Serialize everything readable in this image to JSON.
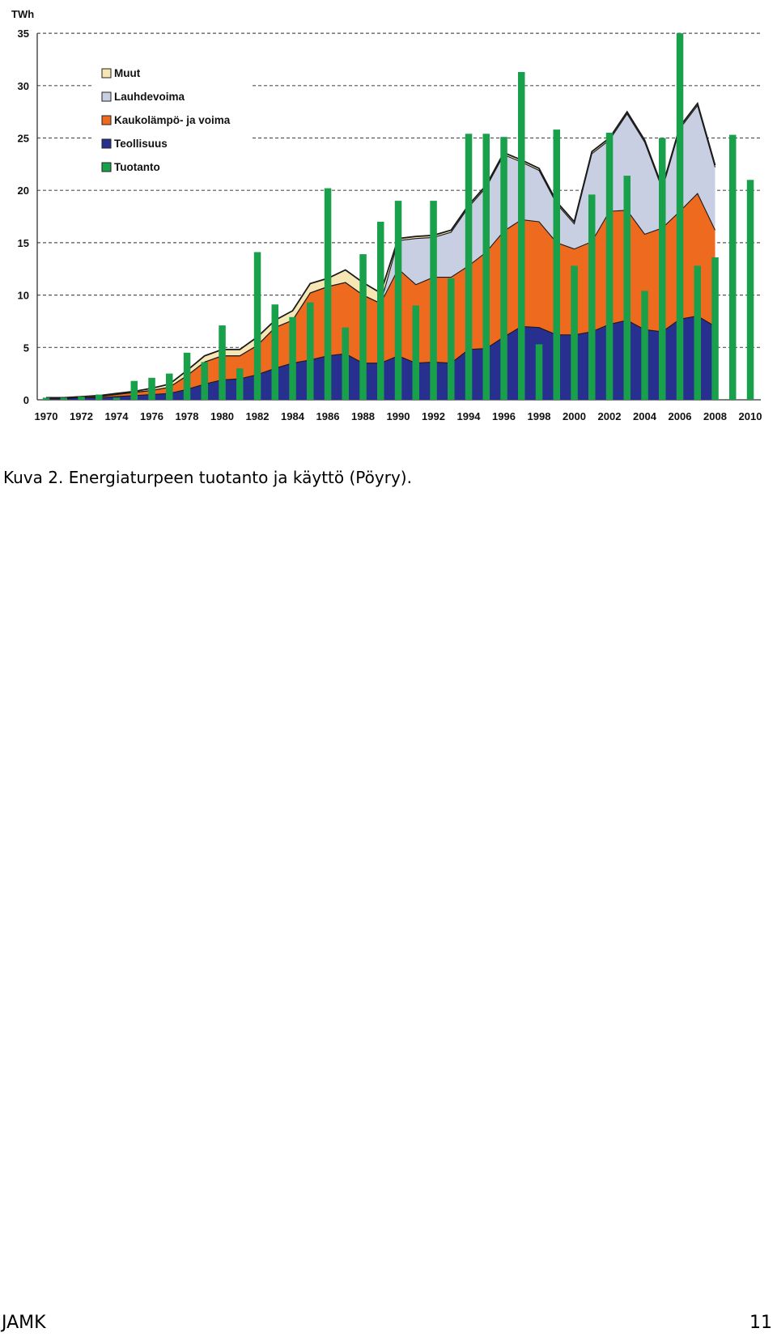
{
  "caption": {
    "label": "Kuva 2.",
    "text": "Energiaturpeen tuotanto ja käyttö (Pöyry)."
  },
  "footer": {
    "left": "JAMK",
    "right": "11"
  },
  "colors": {
    "muut": "#f5e6b4",
    "lauhdevoima": "#c9cfe2",
    "kaukolampo": "#ee6a1e",
    "teollisuus": "#27308f",
    "tuotanto": "#19a04a",
    "grid": "#555555",
    "outline": "#1a1a1a"
  },
  "chart_data": {
    "type": "area",
    "unit_label": "TWh",
    "ylim": [
      0,
      35
    ],
    "yticks": [
      0,
      5,
      10,
      15,
      20,
      25,
      30,
      35
    ],
    "xticks": [
      "1970",
      "1972",
      "1974",
      "1976",
      "1978",
      "1980",
      "1982",
      "1984",
      "1986",
      "1988",
      "1990",
      "1992",
      "1994",
      "1996",
      "1998",
      "2000",
      "2002",
      "2004",
      "2006",
      "2008",
      "2010"
    ],
    "grid": "horizontal dashed",
    "legend_placement": "top-left",
    "legend": [
      "Muut",
      "Lauhdevoima",
      "Kaukolämpö- ja voima",
      "Teollisuus",
      "Tuotanto"
    ],
    "x": [
      1970,
      1971,
      1972,
      1973,
      1974,
      1975,
      1976,
      1977,
      1978,
      1979,
      1980,
      1981,
      1982,
      1983,
      1984,
      1985,
      1986,
      1987,
      1988,
      1989,
      1990,
      1991,
      1992,
      1993,
      1994,
      1995,
      1996,
      1997,
      1998,
      1999,
      2000,
      2001,
      2002,
      2003,
      2004,
      2005,
      2006,
      2007,
      2008,
      2009,
      2010
    ],
    "stacked_series": [
      {
        "name": "Teollisuus",
        "values": [
          0.1,
          0.1,
          0.2,
          0.2,
          0.3,
          0.4,
          0.5,
          0.6,
          1.0,
          1.5,
          1.9,
          2.0,
          2.4,
          3.0,
          3.5,
          3.8,
          4.2,
          4.4,
          3.5,
          3.5,
          4.2,
          3.5,
          3.6,
          3.5,
          4.8,
          4.9,
          6.0,
          7.0,
          6.9,
          6.2,
          6.2,
          6.5,
          7.2,
          7.6,
          6.7,
          6.5,
          7.7,
          8.0,
          7.0,
          null,
          null
        ]
      },
      {
        "name": "Kaukolämpö- ja voima",
        "values": [
          0.1,
          0.1,
          0.1,
          0.1,
          0.2,
          0.3,
          0.4,
          0.6,
          1.3,
          2.1,
          2.3,
          2.2,
          2.8,
          3.9,
          4.1,
          6.4,
          6.6,
          6.8,
          6.5,
          5.7,
          8.3,
          7.5,
          8.1,
          8.2,
          8.0,
          9.2,
          10.1,
          10.2,
          10.1,
          8.8,
          8.2,
          8.6,
          10.8,
          10.5,
          9.1,
          9.9,
          10.3,
          11.7,
          9.2,
          null,
          null
        ]
      },
      {
        "name": "Lauhdevoima",
        "values": [
          0,
          0,
          0,
          0,
          0,
          0,
          0,
          0,
          0,
          0,
          0,
          0,
          0,
          0,
          0,
          0,
          0,
          0,
          0,
          0,
          2.7,
          4.4,
          3.8,
          4.3,
          5.6,
          6.2,
          7.3,
          5.5,
          4.9,
          3.7,
          2.4,
          8.4,
          6.8,
          9.2,
          8.8,
          3.7,
          7.9,
          8.4,
          6.0,
          null,
          null
        ]
      },
      {
        "name": "Muut",
        "values": [
          0,
          0,
          0,
          0.1,
          0.1,
          0.1,
          0.2,
          0.3,
          0.5,
          0.6,
          0.6,
          0.6,
          0.8,
          0.7,
          0.9,
          0.9,
          0.8,
          1.2,
          1.2,
          1.0,
          0.2,
          0.2,
          0.2,
          0.2,
          0.2,
          0.2,
          0.2,
          0.2,
          0.2,
          0.2,
          0.2,
          0.2,
          0.2,
          0.2,
          0.2,
          0.2,
          0.2,
          0.2,
          0.2,
          null,
          null
        ]
      }
    ],
    "bar_series": {
      "name": "Tuotanto",
      "values": [
        0.2,
        0.2,
        0.3,
        0.5,
        0.2,
        1.8,
        2.1,
        2.5,
        4.5,
        3.6,
        7.1,
        3.0,
        14.1,
        9.1,
        7.9,
        9.3,
        20.2,
        6.9,
        13.9,
        17.0,
        19.0,
        9.0,
        19.0,
        11.6,
        25.4,
        25.4,
        25.1,
        31.3,
        5.3,
        25.8,
        12.8,
        19.6,
        25.5,
        21.4,
        10.4,
        25.0,
        35.0,
        12.8,
        13.6,
        25.3,
        21.0
      ]
    }
  }
}
